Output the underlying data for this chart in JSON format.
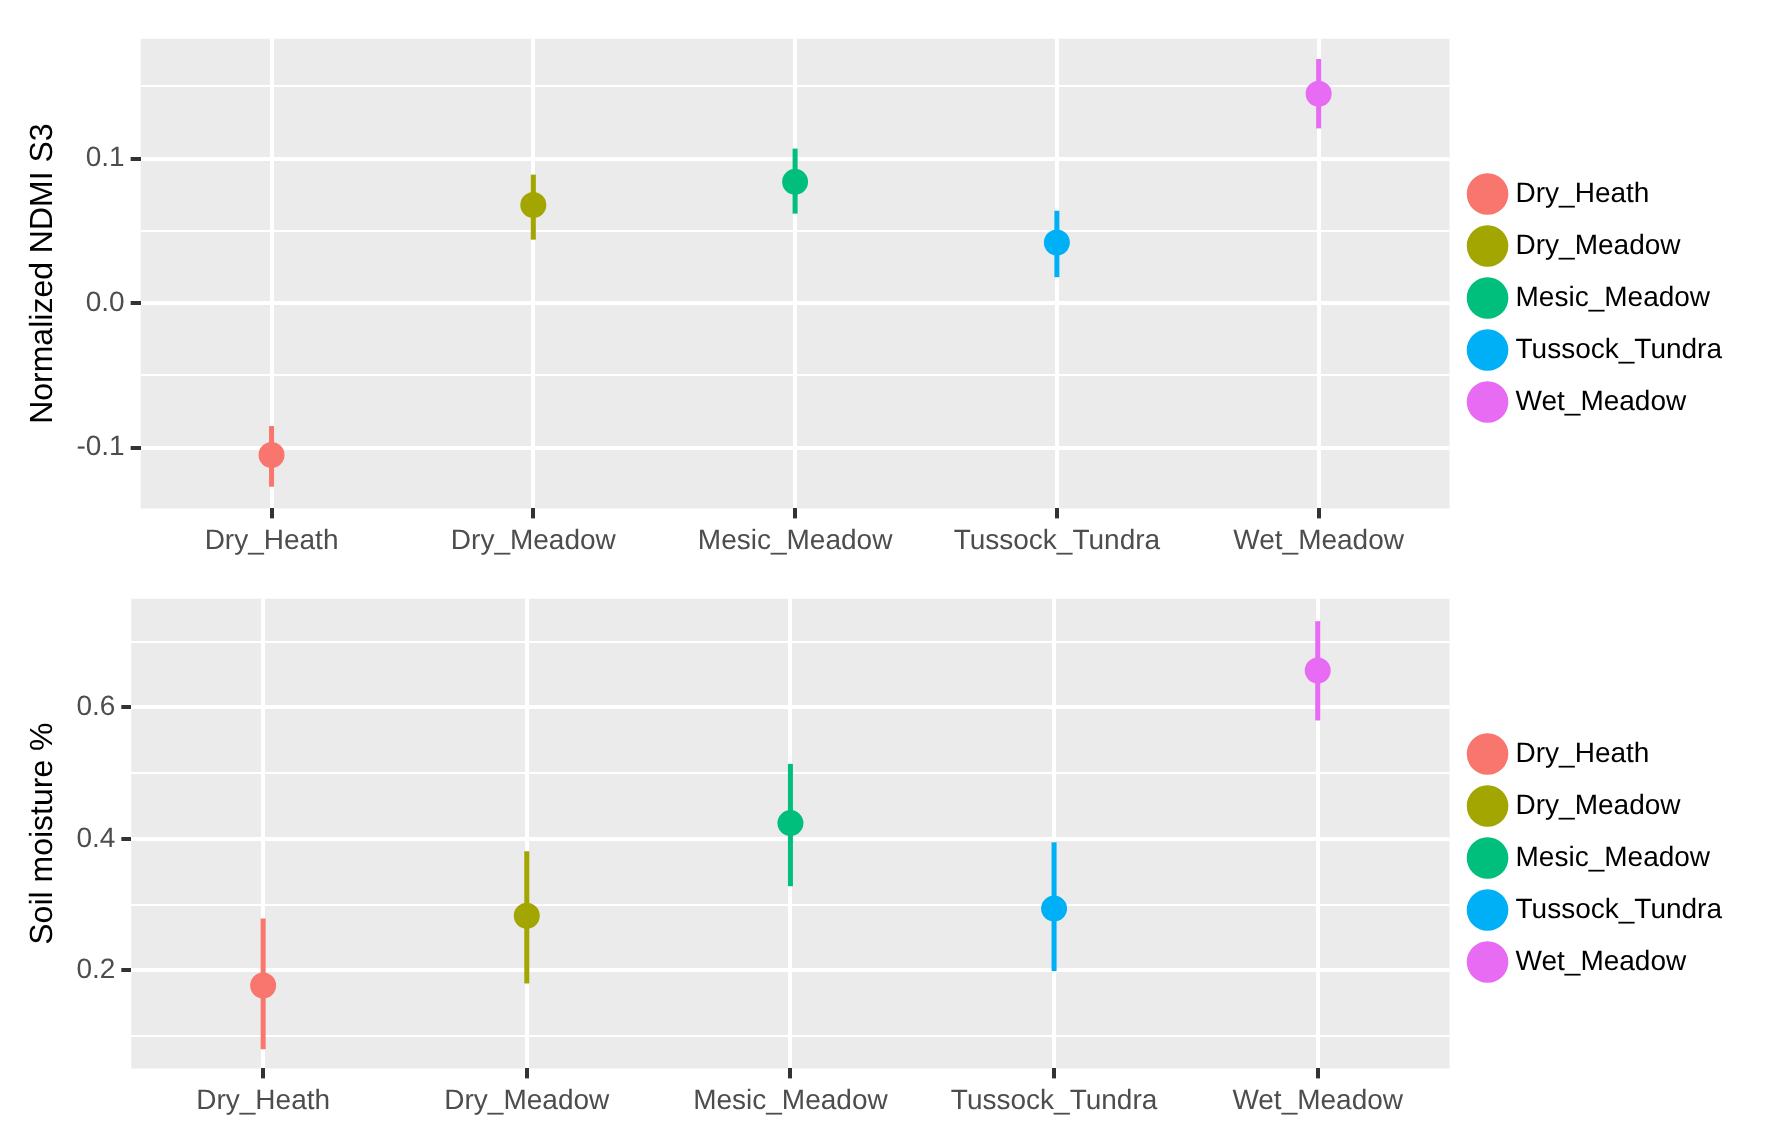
{
  "chart_data": [
    {
      "type": "scatter",
      "ylabel": "Normalized NDMI S3",
      "categories": [
        "Dry_Heath",
        "Dry_Meadow",
        "Mesic_Meadow",
        "Tussock_Tundra",
        "Wet_Meadow"
      ],
      "ylim": [
        -0.142,
        0.183
      ],
      "yticks": [
        {
          "value": -0.1,
          "label": "-0.1"
        },
        {
          "value": -0.05,
          "label": null
        },
        {
          "value": 0,
          "label": "0.0"
        },
        {
          "value": 0.05,
          "label": null
        },
        {
          "value": 0.1,
          "label": "0.1"
        },
        {
          "value": 0.15,
          "label": null
        }
      ],
      "grid": true,
      "legend": "right",
      "marker": "circle",
      "series": [
        {
          "name": "Dry_Heath",
          "color": "#f8766d",
          "values": [
            -0.105,
            null,
            null,
            null,
            null
          ],
          "errors": [
            [
              -0.127,
              -0.085
            ],
            null,
            null,
            null,
            null
          ]
        },
        {
          "name": "Dry_Meadow",
          "color": "#a3a500",
          "values": [
            null,
            0.068,
            null,
            null,
            null
          ],
          "errors": [
            null,
            [
              0.044,
              0.089
            ],
            null,
            null,
            null
          ]
        },
        {
          "name": "Mesic_Meadow",
          "color": "#00bf7d",
          "values": [
            null,
            null,
            0.084,
            null,
            null
          ],
          "errors": [
            null,
            null,
            [
              0.062,
              0.107
            ],
            null,
            null
          ]
        },
        {
          "name": "Tussock_Tundra",
          "color": "#00b0f6",
          "values": [
            null,
            null,
            null,
            0.042,
            null
          ],
          "errors": [
            null,
            null,
            null,
            [
              0.018,
              0.064
            ],
            null
          ]
        },
        {
          "name": "Wet_Meadow",
          "color": "#e76bf3",
          "values": [
            null,
            null,
            null,
            null,
            0.145
          ],
          "errors": [
            null,
            null,
            null,
            null,
            [
              0.121,
              0.169
            ]
          ]
        }
      ]
    },
    {
      "type": "scatter",
      "ylabel": "Soil moisture %",
      "categories": [
        "Dry_Heath",
        "Dry_Meadow",
        "Mesic_Meadow",
        "Tussock_Tundra",
        "Wet_Meadow"
      ],
      "ylim": [
        0.051,
        0.765
      ],
      "yticks": [
        {
          "value": 0.1,
          "label": null
        },
        {
          "value": 0.2,
          "label": "0.2"
        },
        {
          "value": 0.3,
          "label": null
        },
        {
          "value": 0.4,
          "label": "0.4"
        },
        {
          "value": 0.5,
          "label": null
        },
        {
          "value": 0.6,
          "label": "0.6"
        },
        {
          "value": 0.7,
          "label": null
        }
      ],
      "grid": true,
      "legend": "right",
      "marker": "circle",
      "series": [
        {
          "name": "Dry_Heath",
          "color": "#f8766d",
          "values": [
            0.177,
            null,
            null,
            null,
            null
          ],
          "errors": [
            [
              0.08,
              0.279
            ],
            null,
            null,
            null,
            null
          ]
        },
        {
          "name": "Dry_Meadow",
          "color": "#a3a500",
          "values": [
            null,
            0.283,
            null,
            null,
            null
          ],
          "errors": [
            null,
            [
              0.18,
              0.381
            ],
            null,
            null,
            null
          ]
        },
        {
          "name": "Mesic_Meadow",
          "color": "#00bf7d",
          "values": [
            null,
            null,
            0.424,
            null,
            null
          ],
          "errors": [
            null,
            null,
            [
              0.328,
              0.514
            ],
            null,
            null
          ]
        },
        {
          "name": "Tussock_Tundra",
          "color": "#00b0f6",
          "values": [
            null,
            null,
            null,
            0.294,
            null
          ],
          "errors": [
            null,
            null,
            null,
            [
              0.199,
              0.395
            ],
            null
          ]
        },
        {
          "name": "Wet_Meadow",
          "color": "#e76bf3",
          "values": [
            null,
            null,
            null,
            null,
            0.656
          ],
          "errors": [
            null,
            null,
            null,
            null,
            [
              0.58,
              0.731
            ]
          ]
        }
      ]
    }
  ]
}
